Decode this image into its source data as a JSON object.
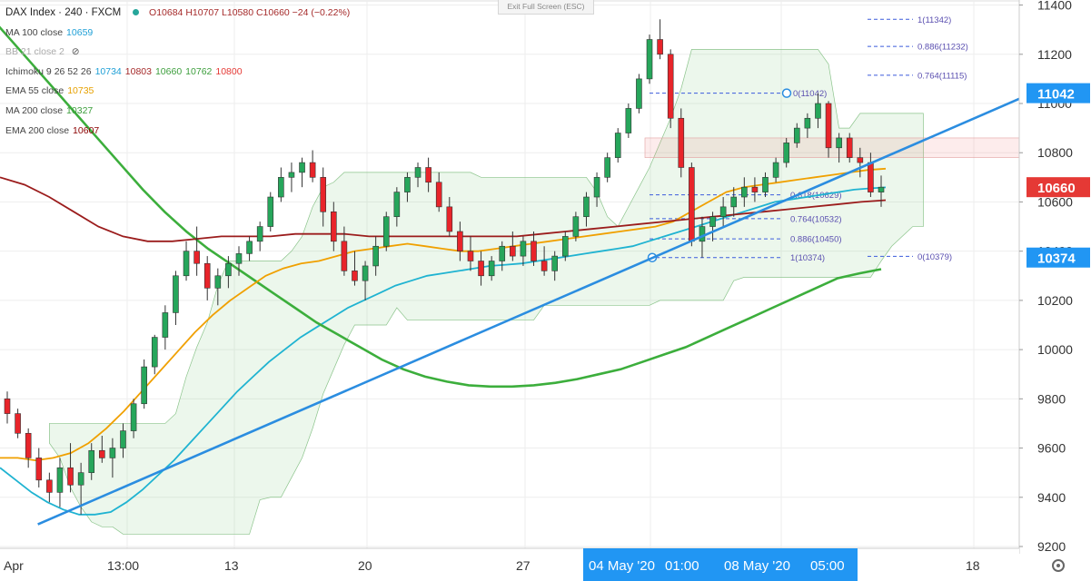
{
  "window": {
    "exit_fullscreen_label": "Exit Full Screen (ESC)",
    "settings_icon": "gear-icon"
  },
  "legend": {
    "symbol": "DAX Index · 240 · FXCM",
    "ohlc": "O10684  H10707  L10580  C10660  −24 (−0.22%)",
    "indicators": [
      {
        "name": "MA 100 close",
        "values": [
          "10659"
        ],
        "colors": [
          "#1e9fd6"
        ]
      },
      {
        "name": "BB 21 close 2",
        "values": [],
        "colors": []
      },
      {
        "name": "Ichimoku 9 26 52 26",
        "values": [
          "10734",
          "10803",
          "10660",
          "10762",
          "10800"
        ],
        "colors": [
          "#1e9fd6",
          "#a52a2a",
          "#3c9e3c",
          "#3c9e3c",
          "#e53935"
        ]
      },
      {
        "name": "EMA 55 close",
        "values": [
          "10735"
        ],
        "colors": [
          "#e6a100"
        ]
      },
      {
        "name": "MA 200 close",
        "values": [
          "10327"
        ],
        "colors": [
          "#3c9e3c"
        ]
      },
      {
        "name": "EMA 200 close",
        "values": [
          "10607"
        ],
        "colors": [
          "#8b0000"
        ]
      }
    ]
  },
  "price_axis": {
    "ticks": [
      "11400",
      "11200",
      "11000",
      "10800",
      "10600",
      "10400",
      "10200",
      "10000",
      "9800",
      "9600",
      "9400",
      "9200"
    ],
    "tick_values": [
      11400,
      11200,
      11000,
      10800,
      10600,
      10400,
      10200,
      10000,
      9800,
      9600,
      9400,
      9200
    ],
    "badges": [
      {
        "label": "11042",
        "value": 11042,
        "color": "#2196f3"
      },
      {
        "label": "10660",
        "value": 10660,
        "color": "#e53935"
      },
      {
        "label": "10374",
        "value": 10374,
        "color": "#2196f3"
      }
    ]
  },
  "time_axis": {
    "labels": [
      "Apr",
      "13:00",
      "13",
      "20",
      "27",
      "18"
    ],
    "highlight_labels": [
      "04 May '20",
      "01:00",
      "08 May '20",
      "05:00"
    ]
  },
  "fibonacci": [
    {
      "label": "1(11342)",
      "value": 11342
    },
    {
      "label": "0.886(11232)",
      "value": 11232
    },
    {
      "label": "0.764(11115)",
      "value": 11115
    },
    {
      "label": "0(11042)",
      "value": 11042
    },
    {
      "label": "0.618(10629)",
      "value": 10629
    },
    {
      "label": "0.764(10532)",
      "value": 10532
    },
    {
      "label": "0.886(10450)",
      "value": 10450
    },
    {
      "label": "1(10374)",
      "value": 10374
    },
    {
      "label": "0(10379)",
      "value": 10379
    }
  ],
  "chart_data": {
    "type": "candlestick",
    "title": "DAX Index · 240 · FXCM",
    "ylim": [
      9200,
      11450
    ],
    "last_price": 10660,
    "candles": [
      [
        9800,
        9830,
        9700,
        9740
      ],
      [
        9740,
        9760,
        9640,
        9660
      ],
      [
        9660,
        9680,
        9520,
        9560
      ],
      [
        9560,
        9600,
        9440,
        9470
      ],
      [
        9470,
        9500,
        9380,
        9420
      ],
      [
        9420,
        9560,
        9360,
        9520
      ],
      [
        9520,
        9620,
        9420,
        9450
      ],
      [
        9450,
        9540,
        9330,
        9500
      ],
      [
        9500,
        9620,
        9470,
        9590
      ],
      [
        9590,
        9650,
        9540,
        9560
      ],
      [
        9560,
        9640,
        9480,
        9600
      ],
      [
        9600,
        9700,
        9560,
        9670
      ],
      [
        9670,
        9800,
        9640,
        9780
      ],
      [
        9780,
        9960,
        9760,
        9930
      ],
      [
        9930,
        10060,
        9900,
        10050
      ],
      [
        10050,
        10180,
        10000,
        10150
      ],
      [
        10150,
        10320,
        10100,
        10300
      ],
      [
        10300,
        10440,
        10280,
        10400
      ],
      [
        10400,
        10500,
        10300,
        10350
      ],
      [
        10350,
        10380,
        10200,
        10250
      ],
      [
        10250,
        10330,
        10180,
        10300
      ],
      [
        10300,
        10380,
        10250,
        10350
      ],
      [
        10350,
        10420,
        10300,
        10390
      ],
      [
        10390,
        10460,
        10360,
        10440
      ],
      [
        10440,
        10520,
        10400,
        10500
      ],
      [
        10500,
        10640,
        10480,
        10620
      ],
      [
        10620,
        10740,
        10600,
        10700
      ],
      [
        10700,
        10760,
        10640,
        10720
      ],
      [
        10720,
        10780,
        10660,
        10760
      ],
      [
        10760,
        10810,
        10680,
        10700
      ],
      [
        10700,
        10740,
        10500,
        10560
      ],
      [
        10560,
        10600,
        10400,
        10440
      ],
      [
        10440,
        10500,
        10300,
        10320
      ],
      [
        10320,
        10400,
        10260,
        10280
      ],
      [
        10280,
        10360,
        10200,
        10340
      ],
      [
        10340,
        10460,
        10300,
        10420
      ],
      [
        10420,
        10560,
        10400,
        10540
      ],
      [
        10540,
        10660,
        10500,
        10640
      ],
      [
        10640,
        10720,
        10600,
        10700
      ],
      [
        10700,
        10760,
        10660,
        10740
      ],
      [
        10740,
        10780,
        10640,
        10680
      ],
      [
        10680,
        10720,
        10560,
        10580
      ],
      [
        10580,
        10620,
        10460,
        10480
      ],
      [
        10480,
        10520,
        10360,
        10400
      ],
      [
        10400,
        10460,
        10320,
        10360
      ],
      [
        10360,
        10400,
        10260,
        10300
      ],
      [
        10300,
        10380,
        10280,
        10360
      ],
      [
        10360,
        10440,
        10320,
        10420
      ],
      [
        10420,
        10480,
        10360,
        10380
      ],
      [
        10380,
        10460,
        10340,
        10440
      ],
      [
        10440,
        10480,
        10340,
        10360
      ],
      [
        10360,
        10420,
        10300,
        10320
      ],
      [
        10320,
        10400,
        10280,
        10380
      ],
      [
        10380,
        10480,
        10360,
        10460
      ],
      [
        10460,
        10560,
        10440,
        10540
      ],
      [
        10540,
        10640,
        10500,
        10620
      ],
      [
        10620,
        10720,
        10580,
        10700
      ],
      [
        10700,
        10800,
        10680,
        10780
      ],
      [
        10780,
        10900,
        10760,
        10880
      ],
      [
        10880,
        11000,
        10860,
        10980
      ],
      [
        10980,
        11120,
        10960,
        11100
      ],
      [
        11100,
        11280,
        11080,
        11260
      ],
      [
        11260,
        11342,
        11180,
        11200
      ],
      [
        11200,
        11220,
        10900,
        10940
      ],
      [
        10940,
        10980,
        10700,
        10740
      ],
      [
        10740,
        10760,
        10420,
        10440
      ],
      [
        10440,
        10540,
        10374,
        10500
      ],
      [
        10500,
        10560,
        10440,
        10540
      ],
      [
        10540,
        10620,
        10500,
        10580
      ],
      [
        10580,
        10660,
        10540,
        10620
      ],
      [
        10620,
        10700,
        10580,
        10660
      ],
      [
        10660,
        10700,
        10600,
        10640
      ],
      [
        10640,
        10720,
        10620,
        10700
      ],
      [
        10700,
        10780,
        10680,
        10760
      ],
      [
        10760,
        10860,
        10740,
        10840
      ],
      [
        10840,
        10920,
        10820,
        10900
      ],
      [
        10900,
        10960,
        10860,
        10940
      ],
      [
        10940,
        11042,
        10900,
        11000
      ],
      [
        11000,
        11010,
        10780,
        10820
      ],
      [
        10820,
        10880,
        10760,
        10860
      ],
      [
        10860,
        10880,
        10760,
        10780
      ],
      [
        10780,
        10820,
        10700,
        10760
      ],
      [
        10760,
        10800,
        10620,
        10640
      ],
      [
        10640,
        10707,
        10580,
        10660
      ]
    ],
    "series": [
      {
        "name": "MA 100 close",
        "color": "#1fb3d1",
        "values": [
          9520,
          9470,
          9420,
          9380,
          9350,
          9330,
          9330,
          9340,
          9380,
          9430,
          9490,
          9550,
          9620,
          9690,
          9760,
          9830,
          9890,
          9950,
          10000,
          10050,
          10090,
          10130,
          10170,
          10200,
          10230,
          10260,
          10280,
          10300,
          10310,
          10320,
          10330,
          10340,
          10345,
          10350,
          10360,
          10370,
          10380,
          10390,
          10400,
          10410,
          10420,
          10440,
          10460,
          10480,
          10500,
          10520,
          10540,
          10560,
          10580,
          10600,
          10610,
          10620,
          10630,
          10640,
          10650,
          10655,
          10659
        ]
      },
      {
        "name": "MA 200 close",
        "color": "#3cae3c",
        "values": [
          11350,
          11250,
          11150,
          11050,
          10950,
          10850,
          10750,
          10650,
          10560,
          10480,
          10410,
          10350,
          10290,
          10230,
          10170,
          10110,
          10060,
          10010,
          9960,
          9920,
          9890,
          9870,
          9855,
          9850,
          9850,
          9855,
          9865,
          9880,
          9900,
          9920,
          9950,
          9980,
          10010,
          10050,
          10090,
          10130,
          10170,
          10210,
          10250,
          10290,
          10310,
          10327
        ]
      },
      {
        "name": "EMA 55 close",
        "color": "#f0a000",
        "values": [
          9560,
          9560,
          9550,
          9560,
          9580,
          9620,
          9680,
          9750,
          9830,
          9910,
          9990,
          10070,
          10140,
          10200,
          10250,
          10300,
          10330,
          10350,
          10360,
          10380,
          10400,
          10410,
          10420,
          10430,
          10420,
          10410,
          10400,
          10400,
          10410,
          10420,
          10430,
          10440,
          10450,
          10460,
          10470,
          10480,
          10490,
          10500,
          10520,
          10560,
          10600,
          10640,
          10660,
          10670,
          10680,
          10690,
          10700,
          10710,
          10720,
          10730,
          10735
        ]
      },
      {
        "name": "EMA 200 close",
        "color": "#9b1c1c",
        "values": [
          10700,
          10670,
          10620,
          10560,
          10500,
          10460,
          10440,
          10440,
          10450,
          10460,
          10460,
          10460,
          10470,
          10470,
          10470,
          10460,
          10460,
          10460,
          10460,
          10460,
          10460,
          10460,
          10470,
          10480,
          10490,
          10500,
          10510,
          10520,
          10530,
          10540,
          10550,
          10560,
          10570,
          10580,
          10590,
          10600,
          10607
        ]
      }
    ],
    "trendline": {
      "from": [
        0.03,
        9290
      ],
      "to": [
        1.0,
        11030
      ],
      "color": "#2b8de0"
    }
  }
}
